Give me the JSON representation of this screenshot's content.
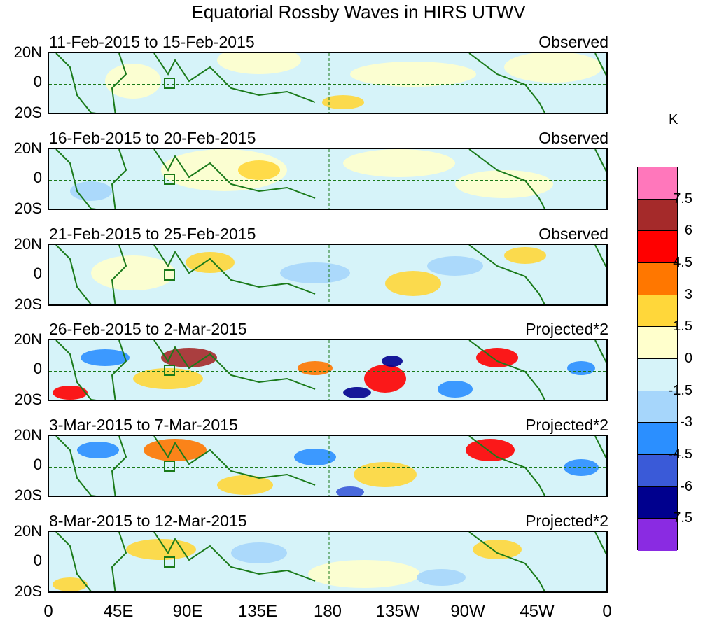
{
  "title": "Equatorial Rossby Waves in HIRS UTWV",
  "panels": [
    {
      "date_range": "11-Feb-2015 to 15-Feb-2015",
      "type": "Observed"
    },
    {
      "date_range": "16-Feb-2015 to 20-Feb-2015",
      "type": "Observed"
    },
    {
      "date_range": "21-Feb-2015 to 25-Feb-2015",
      "type": "Observed"
    },
    {
      "date_range": "26-Feb-2015 to 2-Mar-2015",
      "type": "Projected*2"
    },
    {
      "date_range": "3-Mar-2015 to 7-Mar-2015",
      "type": "Projected*2"
    },
    {
      "date_range": "8-Mar-2015 to 12-Mar-2015",
      "type": "Projected*2"
    }
  ],
  "lat_labels": [
    "20N",
    "0",
    "20S"
  ],
  "lon_labels": [
    "0",
    "45E",
    "90E",
    "135E",
    "180",
    "135W",
    "90W",
    "45W",
    "0"
  ],
  "colorbar": {
    "unit": "K",
    "labels": [
      "7.5",
      "6",
      "4.5",
      "3",
      "1.5",
      "0",
      "-1.5",
      "-3",
      "-4.5",
      "-6",
      "-7.5"
    ],
    "colors": [
      "#ff77bb",
      "#a52a2a",
      "#ff0000",
      "#ff7700",
      "#ffd73a",
      "#ffffcc",
      "#d6f3f9",
      "#a6d6fb",
      "#2b8fff",
      "#3a5ad8",
      "#00008e",
      "#8a2be2"
    ]
  }
}
